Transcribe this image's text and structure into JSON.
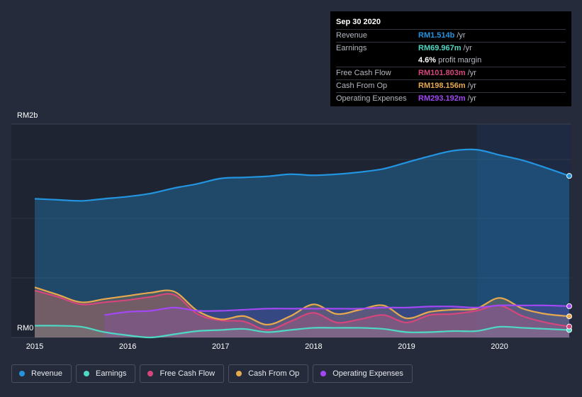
{
  "tooltip": {
    "date": "Sep 30 2020",
    "rows": [
      {
        "label": "Revenue",
        "value": "RM1.514b",
        "unit": "/yr",
        "color": "#2394df"
      },
      {
        "label": "Earnings",
        "value": "RM69.967m",
        "unit": "/yr",
        "color": "#4ed9c4"
      },
      {
        "label": "",
        "value": "4.6%",
        "unit": "profit margin",
        "color": "#ffffff"
      },
      {
        "label": "Free Cash Flow",
        "value": "RM101.803m",
        "unit": "/yr",
        "color": "#d4467c"
      },
      {
        "label": "Cash From Op",
        "value": "RM198.156m",
        "unit": "/yr",
        "color": "#e7a94f"
      },
      {
        "label": "Operating Expenses",
        "value": "RM293.192m",
        "unit": "/yr",
        "color": "#a248f2"
      }
    ]
  },
  "legend": [
    {
      "label": "Revenue",
      "color": "#2394df"
    },
    {
      "label": "Earnings",
      "color": "#4ed9c4"
    },
    {
      "label": "Free Cash Flow",
      "color": "#d4467c"
    },
    {
      "label": "Cash From Op",
      "color": "#e7a94f"
    },
    {
      "label": "Operating Expenses",
      "color": "#a248f2"
    }
  ],
  "chart_data": {
    "type": "area",
    "ylabel_top": "RM2b",
    "ylabel_bottom": "RM0",
    "ylim": [
      0,
      2.0
    ],
    "xlim": [
      2015.0,
      2020.75
    ],
    "x_ticks": [
      "2015",
      "2016",
      "2017",
      "2018",
      "2019",
      "2020"
    ],
    "units": "RM billions per year",
    "series": [
      {
        "name": "Revenue",
        "color": "#2394df",
        "x": [
          2015.0,
          2015.25,
          2015.5,
          2015.75,
          2016.0,
          2016.25,
          2016.5,
          2016.75,
          2017.0,
          2017.25,
          2017.5,
          2017.75,
          2018.0,
          2018.25,
          2018.5,
          2018.75,
          2019.0,
          2019.25,
          2019.5,
          2019.75,
          2020.0,
          2020.25,
          2020.5,
          2020.75
        ],
        "values": [
          1.3,
          1.29,
          1.28,
          1.3,
          1.32,
          1.35,
          1.4,
          1.44,
          1.49,
          1.5,
          1.51,
          1.53,
          1.52,
          1.53,
          1.55,
          1.58,
          1.64,
          1.7,
          1.75,
          1.76,
          1.71,
          1.66,
          1.59,
          1.514
        ]
      },
      {
        "name": "Earnings",
        "color": "#4ed9c4",
        "x": [
          2015.0,
          2015.25,
          2015.5,
          2015.75,
          2016.0,
          2016.25,
          2016.5,
          2016.75,
          2017.0,
          2017.25,
          2017.5,
          2017.75,
          2018.0,
          2018.25,
          2018.5,
          2018.75,
          2019.0,
          2019.25,
          2019.5,
          2019.75,
          2020.0,
          2020.25,
          2020.5,
          2020.75
        ],
        "values": [
          0.11,
          0.11,
          0.1,
          0.05,
          0.02,
          0.0,
          0.03,
          0.06,
          0.07,
          0.08,
          0.05,
          0.07,
          0.09,
          0.09,
          0.09,
          0.08,
          0.05,
          0.05,
          0.06,
          0.06,
          0.1,
          0.09,
          0.08,
          0.07
        ]
      },
      {
        "name": "Free Cash Flow",
        "color": "#d4467c",
        "x": [
          2015.0,
          2015.25,
          2015.5,
          2015.75,
          2016.0,
          2016.25,
          2016.5,
          2016.75,
          2017.0,
          2017.25,
          2017.5,
          2017.75,
          2018.0,
          2018.25,
          2018.5,
          2018.75,
          2019.0,
          2019.25,
          2019.5,
          2019.75,
          2020.0,
          2020.25,
          2020.5,
          2020.75
        ],
        "values": [
          0.44,
          0.38,
          0.31,
          0.33,
          0.35,
          0.38,
          0.4,
          0.22,
          0.16,
          0.15,
          0.07,
          0.15,
          0.23,
          0.14,
          0.17,
          0.21,
          0.14,
          0.21,
          0.22,
          0.25,
          0.3,
          0.2,
          0.14,
          0.102
        ]
      },
      {
        "name": "Cash From Op",
        "color": "#e7a94f",
        "x": [
          2015.0,
          2015.25,
          2015.5,
          2015.75,
          2016.0,
          2016.25,
          2016.5,
          2016.75,
          2017.0,
          2017.25,
          2017.5,
          2017.75,
          2018.0,
          2018.25,
          2018.5,
          2018.75,
          2019.0,
          2019.25,
          2019.5,
          2019.75,
          2020.0,
          2020.25,
          2020.5,
          2020.75
        ],
        "values": [
          0.47,
          0.4,
          0.33,
          0.36,
          0.39,
          0.42,
          0.43,
          0.25,
          0.17,
          0.2,
          0.12,
          0.2,
          0.31,
          0.22,
          0.26,
          0.3,
          0.18,
          0.24,
          0.26,
          0.27,
          0.37,
          0.27,
          0.22,
          0.198
        ]
      },
      {
        "name": "Operating Expenses",
        "color": "#a248f2",
        "x": [
          2015.75,
          2016.0,
          2016.25,
          2016.5,
          2016.75,
          2017.0,
          2017.25,
          2017.5,
          2017.75,
          2018.0,
          2018.25,
          2018.5,
          2018.75,
          2019.0,
          2019.25,
          2019.5,
          2019.75,
          2020.0,
          2020.25,
          2020.5,
          2020.75
        ],
        "values": [
          0.21,
          0.24,
          0.25,
          0.28,
          0.25,
          0.25,
          0.26,
          0.27,
          0.27,
          0.27,
          0.27,
          0.27,
          0.28,
          0.28,
          0.29,
          0.29,
          0.28,
          0.3,
          0.3,
          0.3,
          0.293
        ]
      }
    ]
  }
}
